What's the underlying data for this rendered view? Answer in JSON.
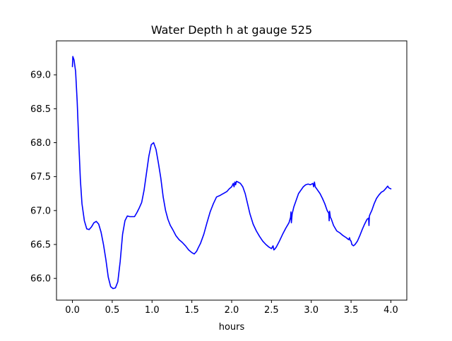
{
  "chart_data": {
    "type": "line",
    "title": "Water Depth h at gauge 525",
    "xlabel": "hours",
    "ylabel": "",
    "xlim": [
      -0.2,
      4.2
    ],
    "ylim": [
      65.68,
      69.5
    ],
    "xticks": [
      0.0,
      0.5,
      1.0,
      1.5,
      2.0,
      2.5,
      3.0,
      3.5,
      4.0
    ],
    "xtick_labels": [
      "0.0",
      "0.5",
      "1.0",
      "1.5",
      "2.0",
      "2.5",
      "3.0",
      "3.5",
      "4.0"
    ],
    "yticks": [
      66.0,
      66.5,
      67.0,
      67.5,
      68.0,
      68.5,
      69.0
    ],
    "ytick_labels": [
      "66.0",
      "66.5",
      "67.0",
      "67.5",
      "68.0",
      "68.5",
      "69.0"
    ],
    "grid": false,
    "line_color": "#0000ff",
    "series": [
      {
        "x": [
          0.0,
          0.005,
          0.02,
          0.04,
          0.06,
          0.08,
          0.1,
          0.12,
          0.15,
          0.18,
          0.21,
          0.24,
          0.27,
          0.3,
          0.33,
          0.36,
          0.39,
          0.42,
          0.45,
          0.48,
          0.51,
          0.54,
          0.57,
          0.6,
          0.63,
          0.66,
          0.69,
          0.72,
          0.75,
          0.78,
          0.81,
          0.84,
          0.87,
          0.9,
          0.93,
          0.96,
          0.99,
          1.02,
          1.05,
          1.08,
          1.11,
          1.14,
          1.17,
          1.2,
          1.23,
          1.26,
          1.3,
          1.34,
          1.38,
          1.42,
          1.46,
          1.5,
          1.53,
          1.56,
          1.58,
          1.61,
          1.65,
          1.69,
          1.73,
          1.77,
          1.81,
          1.85,
          1.88,
          1.91,
          1.94,
          1.97,
          2.0,
          2.02,
          2.03,
          2.04,
          2.05,
          2.06,
          2.08,
          2.11,
          2.14,
          2.17,
          2.2,
          2.23,
          2.27,
          2.31,
          2.35,
          2.39,
          2.43,
          2.47,
          2.5,
          2.52,
          2.53,
          2.54,
          2.56,
          2.6,
          2.64,
          2.68,
          2.72,
          2.74,
          2.745,
          2.75,
          2.76,
          2.78,
          2.81,
          2.84,
          2.87,
          2.9,
          2.93,
          2.96,
          2.99,
          3.02,
          3.03,
          3.04,
          3.05,
          3.08,
          3.11,
          3.14,
          3.17,
          3.2,
          3.22,
          3.225,
          3.23,
          3.24,
          3.25,
          3.28,
          3.32,
          3.36,
          3.4,
          3.44,
          3.47,
          3.48,
          3.49,
          3.5,
          3.51,
          3.53,
          3.55,
          3.58,
          3.61,
          3.64,
          3.67,
          3.7,
          3.72,
          3.725,
          3.73,
          3.74,
          3.76,
          3.79,
          3.82,
          3.85,
          3.88,
          3.91,
          3.94,
          3.96,
          3.97,
          3.98,
          4.0
        ],
        "y": [
          69.12,
          69.27,
          69.22,
          69.05,
          68.6,
          68.0,
          67.45,
          67.1,
          66.85,
          66.73,
          66.72,
          66.76,
          66.82,
          66.84,
          66.8,
          66.68,
          66.5,
          66.28,
          66.02,
          65.88,
          65.85,
          65.86,
          65.95,
          66.25,
          66.65,
          66.85,
          66.92,
          66.91,
          66.91,
          66.91,
          66.97,
          67.04,
          67.12,
          67.3,
          67.55,
          67.8,
          67.97,
          68.0,
          67.9,
          67.7,
          67.48,
          67.2,
          67.0,
          66.87,
          66.78,
          66.72,
          66.63,
          66.57,
          66.53,
          66.48,
          66.42,
          66.38,
          66.36,
          66.4,
          66.45,
          66.52,
          66.65,
          66.82,
          66.98,
          67.1,
          67.2,
          67.22,
          67.24,
          67.26,
          67.28,
          67.32,
          67.35,
          67.4,
          67.35,
          67.42,
          67.38,
          67.43,
          67.42,
          67.4,
          67.35,
          67.25,
          67.1,
          66.95,
          66.8,
          66.7,
          66.62,
          66.55,
          66.5,
          66.46,
          66.44,
          66.48,
          66.42,
          66.43,
          66.46,
          66.55,
          66.65,
          66.74,
          66.82,
          66.9,
          66.98,
          66.82,
          66.95,
          67.05,
          67.15,
          67.25,
          67.3,
          67.35,
          67.38,
          67.39,
          67.38,
          67.4,
          67.35,
          67.42,
          67.35,
          67.3,
          67.25,
          67.18,
          67.1,
          67.0,
          66.96,
          66.85,
          66.99,
          66.9,
          66.88,
          66.78,
          66.7,
          66.67,
          66.63,
          66.6,
          66.57,
          66.6,
          66.56,
          66.55,
          66.5,
          66.48,
          66.5,
          66.55,
          66.63,
          66.72,
          66.8,
          66.87,
          66.89,
          66.78,
          66.92,
          66.95,
          67.0,
          67.1,
          67.18,
          67.23,
          67.27,
          67.29,
          67.33,
          67.36,
          67.34,
          67.33,
          67.32
        ]
      }
    ]
  }
}
